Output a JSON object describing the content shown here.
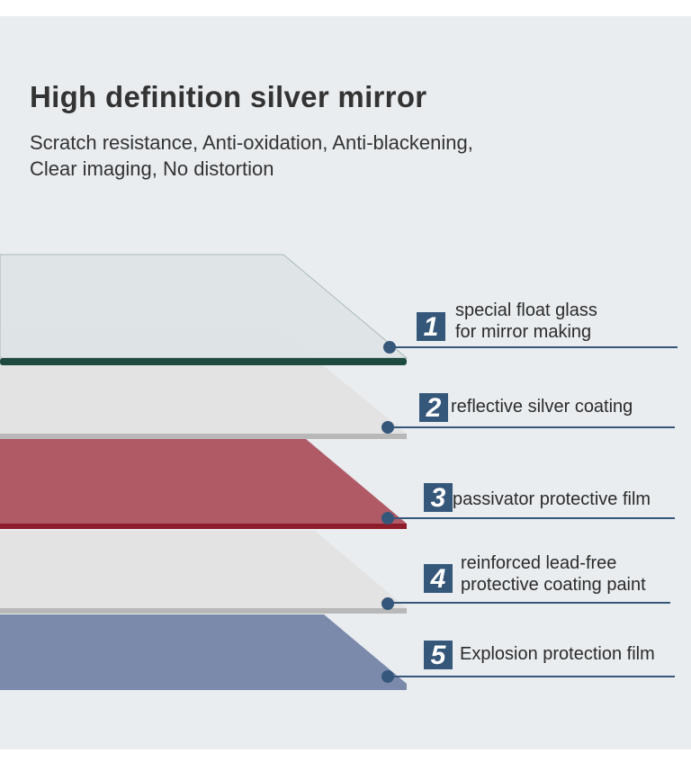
{
  "header": {
    "title": "High definition silver mirror",
    "subtitle_lines": [
      "Scratch resistance, Anti-oxidation, Anti-blackening,",
      "Clear imaging, No distortion"
    ]
  },
  "layers": [
    {
      "number": "1",
      "lines": [
        "special float glass",
        "for mirror making"
      ],
      "color": "#dde3e5",
      "edge_color": "#1f4a40"
    },
    {
      "number": "2",
      "lines": [
        "reflective silver coating"
      ],
      "color": "#e3e3e3",
      "edge_color": "#b8b8b8"
    },
    {
      "number": "3",
      "lines": [
        "passivator protective film"
      ],
      "color": "#b05a66",
      "edge_color": "#8f1c2a"
    },
    {
      "number": "4",
      "lines": [
        "reinforced lead-free",
        "protective coating paint"
      ],
      "color": "#e3e3e3",
      "edge_color": "#b8b8b8"
    },
    {
      "number": "5",
      "lines": [
        "Explosion protection film"
      ],
      "color": "#7b8aab",
      "edge_color": "#7b8aab"
    }
  ],
  "colors": {
    "background": "#e9edf0",
    "accent": "#35577a"
  }
}
